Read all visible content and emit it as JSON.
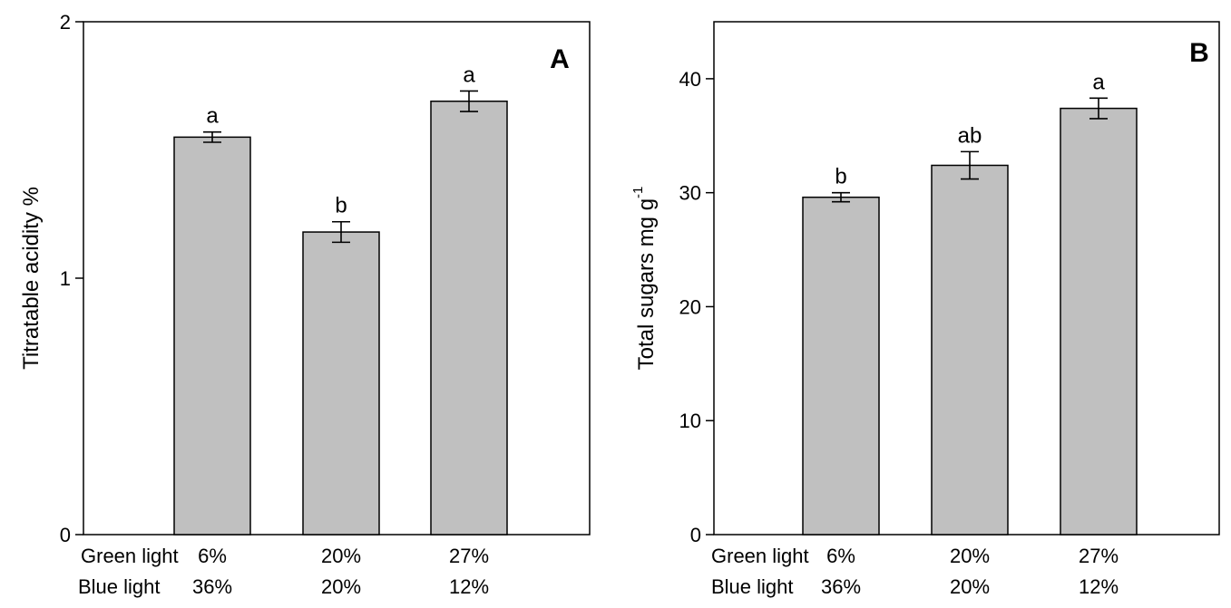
{
  "chart_data": [
    {
      "type": "bar",
      "panel_label": "A",
      "ylabel": "Titratable acidity %",
      "ylabel_superscript": "",
      "ylim": [
        0,
        2
      ],
      "yticks": [
        0,
        1,
        2
      ],
      "yticklabels": [
        "0",
        "1",
        "2"
      ],
      "xticks": {
        "row_labels": [
          "Green light",
          "Blue light"
        ],
        "rows": [
          [
            "6%",
            "20%",
            "27%"
          ],
          [
            "36%",
            "20%",
            "12%"
          ]
        ]
      },
      "grid": false,
      "bar_color": "#c0c0c0",
      "values": [
        1.55,
        1.18,
        1.69
      ],
      "errors": [
        0.02,
        0.04,
        0.04
      ],
      "significance": [
        "a",
        "b",
        "a"
      ]
    },
    {
      "type": "bar",
      "panel_label": "B",
      "ylabel": "Total sugars mg g",
      "ylabel_superscript": "-1",
      "ylim": [
        0,
        45
      ],
      "yticks": [
        0,
        10,
        20,
        30,
        40
      ],
      "yticklabels": [
        "0",
        "10",
        "20",
        "30",
        "40"
      ],
      "xticks": {
        "row_labels": [
          "Green light",
          "Blue light"
        ],
        "rows": [
          [
            "6%",
            "20%",
            "27%"
          ],
          [
            "36%",
            "20%",
            "12%"
          ]
        ]
      },
      "grid": false,
      "bar_color": "#c0c0c0",
      "values": [
        29.6,
        32.4,
        37.4
      ],
      "errors": [
        0.4,
        1.2,
        0.9
      ],
      "significance": [
        "b",
        "ab",
        "a"
      ]
    }
  ]
}
